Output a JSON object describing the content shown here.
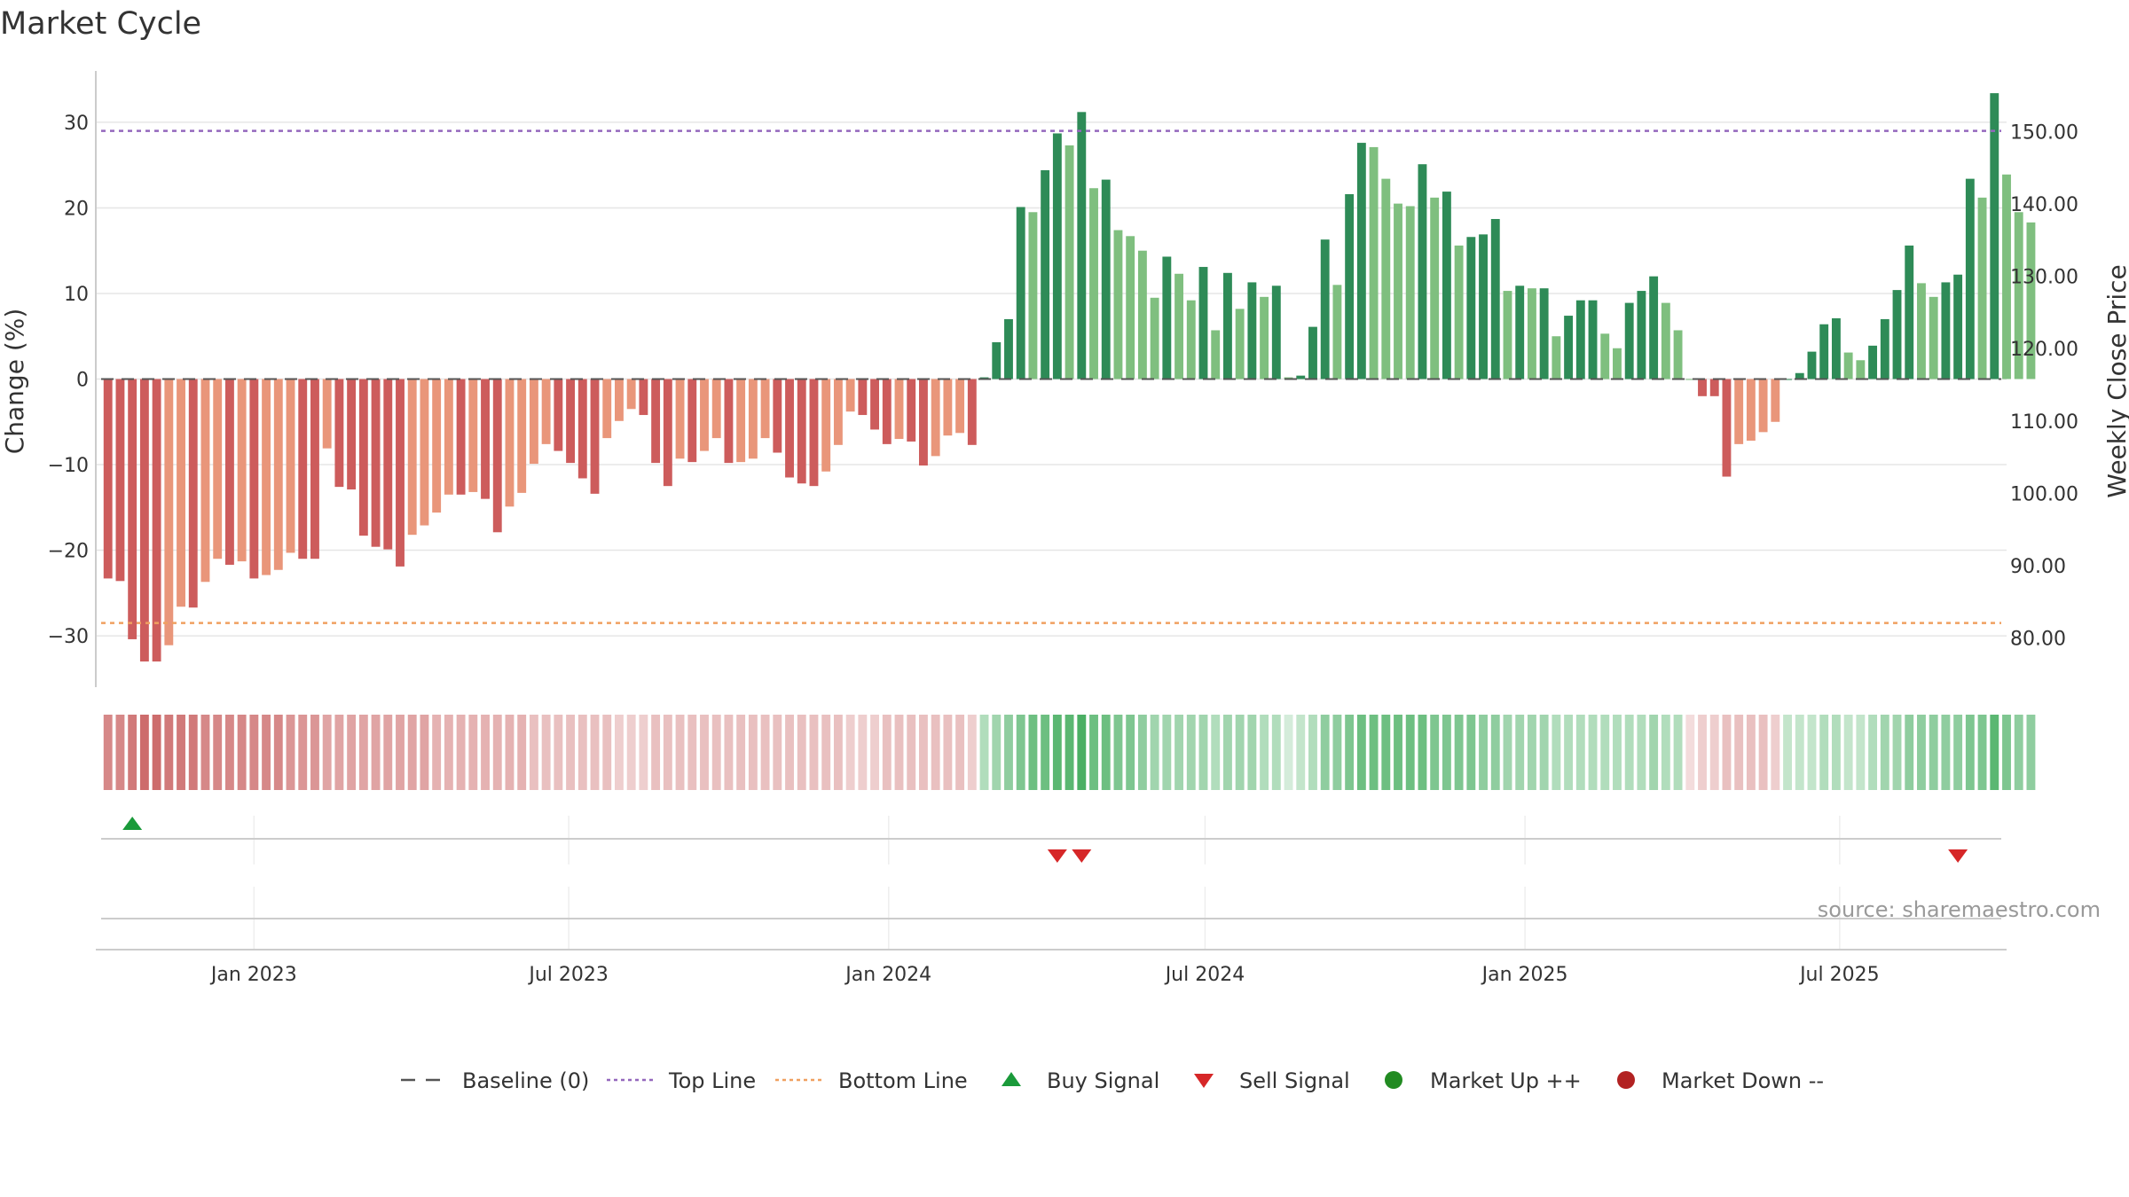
{
  "chart_data": {
    "type": "bar",
    "title": "Market Cycle",
    "ylabel": "Change (%)",
    "y2label": "Weekly Close Price",
    "ylim": [
      -36,
      36
    ],
    "y2lim": [
      73.2,
      158.4
    ],
    "xlim": [
      "2022-10-02",
      "2025-10-05"
    ],
    "y_ticks": [
      {
        "value": 30,
        "label": "30"
      },
      {
        "value": 20,
        "label": "20"
      },
      {
        "value": 10,
        "label": "10"
      },
      {
        "value": 0,
        "label": "0"
      },
      {
        "value": -10,
        "label": "−10"
      },
      {
        "value": -20,
        "label": "−20"
      },
      {
        "value": -30,
        "label": "−30"
      }
    ],
    "y2_ticks": [
      {
        "value": 150,
        "label": "150.00"
      },
      {
        "value": 140,
        "label": "140.00"
      },
      {
        "value": 130,
        "label": "130.00"
      },
      {
        "value": 120,
        "label": "120.00"
      },
      {
        "value": 110,
        "label": "110.00"
      },
      {
        "value": 100,
        "label": "100.00"
      },
      {
        "value": 90,
        "label": "90.00"
      },
      {
        "value": 80,
        "label": "80.00"
      }
    ],
    "x_ticks": [
      {
        "date": "2023-01-01",
        "label": "Jan 2023"
      },
      {
        "date": "2023-07-01",
        "label": "Jul 2023"
      },
      {
        "date": "2024-01-01",
        "label": "Jan 2024"
      },
      {
        "date": "2024-07-01",
        "label": "Jul 2024"
      },
      {
        "date": "2025-01-01",
        "label": "Jan 2025"
      },
      {
        "date": "2025-07-01",
        "label": "Jul 2025"
      }
    ],
    "reference_lines": [
      {
        "name": "Baseline (0)",
        "value": 0,
        "style": "dashed",
        "color": "#555555"
      },
      {
        "name": "Top Line",
        "value": 29,
        "style": "dotted",
        "color": "#9467bd"
      },
      {
        "name": "Bottom Line",
        "value": -28.5,
        "style": "dotted",
        "color": "#f0a060"
      }
    ],
    "series": [
      {
        "name": "Weekly Change",
        "start_date": "2022-10-09",
        "interval_days": 7,
        "values": [
          -23.3,
          -23.6,
          -30.4,
          -33.0,
          -33.0,
          -31.1,
          -26.6,
          -26.7,
          -23.7,
          -21.0,
          -21.7,
          -21.3,
          -23.3,
          -22.9,
          -22.3,
          -20.3,
          -21.0,
          -21.0,
          -8.1,
          -12.6,
          -12.9,
          -18.3,
          -19.6,
          -19.9,
          -21.9,
          -18.2,
          -17.1,
          -15.6,
          -13.5,
          -13.5,
          -13.2,
          -14.0,
          -17.9,
          -14.9,
          -13.3,
          -9.9,
          -7.6,
          -8.4,
          -9.8,
          -11.6,
          -13.4,
          -6.9,
          -4.9,
          -3.5,
          -4.2,
          -9.8,
          -12.5,
          -9.3,
          -9.7,
          -8.4,
          -6.9,
          -9.8,
          -9.7,
          -9.3,
          -6.9,
          -8.6,
          -11.5,
          -12.2,
          -12.5,
          -10.8,
          -7.7,
          -3.8,
          -4.2,
          -5.9,
          -7.6,
          -7.0,
          -7.3,
          -10.1,
          -9.0,
          -6.6,
          -6.3,
          -7.7,
          0.2,
          4.3,
          7.0,
          20.1,
          19.5,
          24.4,
          28.7,
          27.3,
          31.2,
          22.3,
          23.3,
          17.4,
          16.7,
          15.0,
          9.5,
          14.3,
          12.3,
          9.2,
          13.1,
          5.7,
          12.4,
          8.2,
          11.3,
          9.6,
          10.9,
          0.2,
          0.4,
          6.1,
          16.3,
          11.0,
          21.6,
          27.6,
          27.1,
          23.4,
          20.5,
          20.2,
          25.1,
          21.2,
          21.9,
          15.6,
          16.6,
          16.9,
          18.7,
          10.3,
          10.9,
          10.6,
          10.6,
          5.0,
          7.4,
          9.2,
          9.2,
          5.3,
          3.6,
          8.9,
          10.3,
          12.0,
          8.9,
          5.7,
          0.0,
          -2.0,
          -2.0,
          -11.4,
          -7.6,
          -7.2,
          -6.2,
          -5.0,
          0.0,
          0.7,
          3.2,
          6.4,
          7.1,
          3.1,
          2.2,
          3.9,
          7.0,
          10.4,
          15.6,
          11.2,
          9.6,
          11.3,
          12.2,
          23.4,
          21.2,
          33.4,
          23.9,
          19.5,
          18.3
        ]
      }
    ],
    "status_band": {
      "name": "Market strength",
      "levels": [
        -0.7,
        -0.7,
        -0.8,
        -0.9,
        -0.9,
        -0.8,
        -0.8,
        -0.8,
        -0.7,
        -0.7,
        -0.7,
        -0.7,
        -0.7,
        -0.7,
        -0.7,
        -0.6,
        -0.6,
        -0.6,
        -0.5,
        -0.5,
        -0.5,
        -0.5,
        -0.5,
        -0.5,
        -0.5,
        -0.5,
        -0.5,
        -0.4,
        -0.4,
        -0.4,
        -0.4,
        -0.4,
        -0.4,
        -0.4,
        -0.4,
        -0.3,
        -0.3,
        -0.3,
        -0.3,
        -0.3,
        -0.3,
        -0.3,
        -0.2,
        -0.2,
        -0.2,
        -0.3,
        -0.3,
        -0.3,
        -0.3,
        -0.3,
        -0.3,
        -0.3,
        -0.3,
        -0.3,
        -0.3,
        -0.3,
        -0.3,
        -0.3,
        -0.3,
        -0.3,
        -0.3,
        -0.2,
        -0.2,
        -0.2,
        -0.3,
        -0.3,
        -0.3,
        -0.3,
        -0.3,
        -0.3,
        -0.3,
        -0.2,
        0.3,
        0.4,
        0.5,
        0.6,
        0.7,
        0.7,
        0.8,
        0.8,
        0.9,
        0.7,
        0.7,
        0.6,
        0.6,
        0.5,
        0.4,
        0.4,
        0.4,
        0.4,
        0.4,
        0.3,
        0.4,
        0.4,
        0.4,
        0.3,
        0.3,
        0.1,
        0.2,
        0.3,
        0.5,
        0.5,
        0.6,
        0.7,
        0.7,
        0.7,
        0.7,
        0.7,
        0.7,
        0.6,
        0.6,
        0.6,
        0.6,
        0.5,
        0.5,
        0.4,
        0.4,
        0.4,
        0.4,
        0.3,
        0.3,
        0.3,
        0.3,
        0.3,
        0.3,
        0.3,
        0.3,
        0.4,
        0.3,
        0.3,
        -0.1,
        -0.2,
        -0.2,
        -0.3,
        -0.3,
        -0.3,
        -0.3,
        -0.2,
        0.2,
        0.2,
        0.2,
        0.3,
        0.3,
        0.2,
        0.2,
        0.3,
        0.4,
        0.4,
        0.5,
        0.5,
        0.5,
        0.5,
        0.5,
        0.6,
        0.6,
        0.8,
        0.6,
        0.5,
        0.5
      ]
    },
    "signals": [
      {
        "type": "buy",
        "date": "2022-10-23"
      },
      {
        "type": "sell",
        "date": "2024-04-07"
      },
      {
        "type": "sell",
        "date": "2024-04-21"
      },
      {
        "type": "sell",
        "date": "2025-09-07"
      }
    ],
    "legend": [
      {
        "name": "Baseline (0)",
        "marker": "dash",
        "color": "#555555"
      },
      {
        "name": "Top Line",
        "marker": "dot-line",
        "color": "#9467bd"
      },
      {
        "name": "Bottom Line",
        "marker": "dot-line",
        "color": "#f0a060"
      },
      {
        "name": "Buy Signal",
        "marker": "triangle-up",
        "color": "#1a9a3a"
      },
      {
        "name": "Sell Signal",
        "marker": "triangle-down",
        "color": "#d62728"
      },
      {
        "name": "Market Up ++",
        "marker": "circle",
        "color": "#228b22"
      },
      {
        "name": "Market Down --",
        "marker": "circle",
        "color": "#b22222"
      }
    ],
    "legend_position": "bottom-center",
    "colors": {
      "strong_down": "#cd5c5c",
      "weak_down": "#e9967a",
      "strong_up": "#2e8b57",
      "weak_up": "#7fbf7f",
      "grid": "#e6e6e6"
    },
    "grid": true
  },
  "source_text": "source: sharemaestro.com"
}
